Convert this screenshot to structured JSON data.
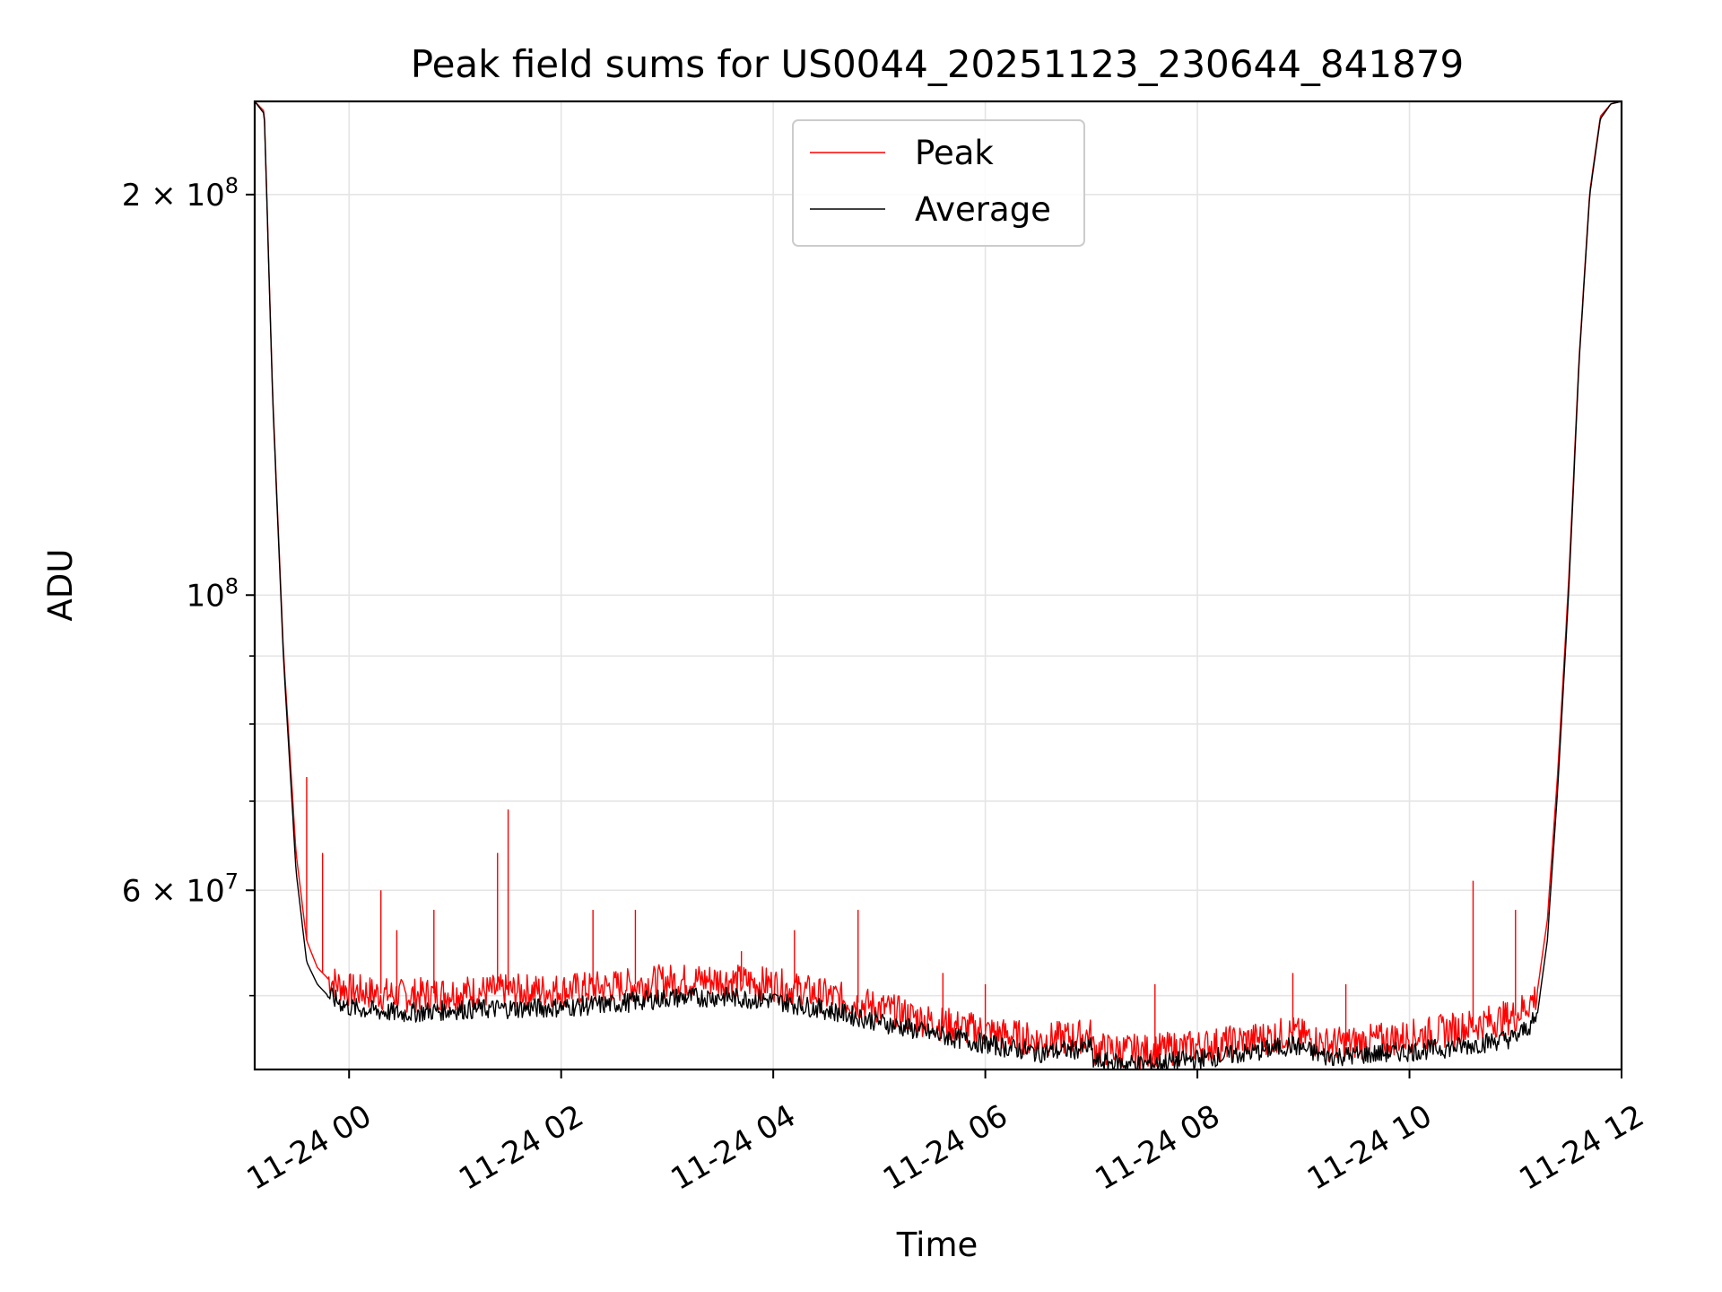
{
  "chart_data": {
    "type": "line",
    "title": "Peak field sums for US0044_20251123_230644_841879",
    "xlabel": "Time",
    "ylabel": "ADU",
    "yscale": "log",
    "xlim_hours": [
      -0.89,
      12.0
    ],
    "ylim": [
      44000000,
      235000000
    ],
    "x_ticks": [
      {
        "hours": 0,
        "label": "11-24 00"
      },
      {
        "hours": 2,
        "label": "11-24 02"
      },
      {
        "hours": 4,
        "label": "11-24 04"
      },
      {
        "hours": 6,
        "label": "11-24 06"
      },
      {
        "hours": 8,
        "label": "11-24 08"
      },
      {
        "hours": 10,
        "label": "11-24 10"
      },
      {
        "hours": 12,
        "label": "11-24 12"
      }
    ],
    "y_major_ticks": [
      {
        "value": 200000000,
        "mantissa": "2",
        "exponent": "8"
      },
      {
        "value": 100000000,
        "mantissa": "",
        "exponent": "8"
      },
      {
        "value": 60000000,
        "mantissa": "6",
        "exponent": "7"
      }
    ],
    "y_minor_ticks": [
      50000000,
      70000000,
      80000000,
      90000000
    ],
    "legend": {
      "location": "upper center",
      "entries": [
        {
          "label": "Peak",
          "color": "#ff0000"
        },
        {
          "label": "Average",
          "color": "#000000"
        }
      ]
    },
    "series": [
      {
        "name": "Average",
        "color": "#000000",
        "x_hours": [
          -0.89,
          -0.8,
          -0.72,
          -0.62,
          -0.5,
          -0.4,
          -0.3,
          -0.2,
          -0.1,
          0.0,
          0.25,
          0.5,
          1.0,
          1.5,
          2.0,
          2.5,
          3.0,
          3.5,
          4.0,
          4.5,
          5.0,
          5.5,
          6.0,
          6.5,
          7.0,
          7.02,
          7.5,
          8.0,
          8.5,
          8.9,
          9.2,
          9.5,
          10.0,
          10.5,
          11.0,
          11.2,
          11.3,
          11.4,
          11.5,
          11.6,
          11.7,
          11.8,
          11.9,
          12.0
        ],
        "values": [
          235000000,
          230000000,
          140000000,
          90000000,
          62000000,
          53000000,
          51000000,
          50000000,
          49500000,
          49000000,
          48700000,
          48500000,
          48800000,
          48900000,
          49000000,
          49300000,
          49800000,
          49900000,
          49600000,
          48800000,
          47800000,
          46800000,
          46000000,
          45300000,
          45700000,
          44600000,
          44400000,
          44800000,
          45300000,
          45900000,
          45000000,
          45100000,
          45400000,
          45800000,
          46500000,
          48000000,
          55000000,
          72000000,
          100000000,
          150000000,
          200000000,
          228000000,
          234000000,
          235000000
        ]
      },
      {
        "name": "Peak",
        "color": "#ff0000",
        "x_hours": [
          -0.89,
          -0.8,
          -0.72,
          -0.62,
          -0.5,
          -0.4,
          -0.3,
          -0.2,
          -0.1,
          0.0,
          0.25,
          0.5,
          1.0,
          1.5,
          2.0,
          2.5,
          3.0,
          3.5,
          4.0,
          4.5,
          5.0,
          5.5,
          6.0,
          6.5,
          7.0,
          7.02,
          7.5,
          8.0,
          8.5,
          8.9,
          9.2,
          9.5,
          10.0,
          10.5,
          11.0,
          11.2,
          11.3,
          11.4,
          11.5,
          11.6,
          11.7,
          11.8,
          11.9,
          12.0
        ],
        "values": [
          235000000,
          231000000,
          141000000,
          91000000,
          64000000,
          55000000,
          52500000,
          51500000,
          51000000,
          50500000,
          50200000,
          50000000,
          50300000,
          50400000,
          50500000,
          50800000,
          51300000,
          51400000,
          51000000,
          50000000,
          49000000,
          47800000,
          47000000,
          46300000,
          46700000,
          45600000,
          45400000,
          45800000,
          46300000,
          46900000,
          46000000,
          46100000,
          46600000,
          47300000,
          48300000,
          50000000,
          57000000,
          74000000,
          102000000,
          151000000,
          201000000,
          229000000,
          234000000,
          235000000
        ]
      }
    ],
    "spikes": [
      {
        "series": "Peak",
        "x_hours": -0.4,
        "value": 73000000
      },
      {
        "series": "Peak",
        "x_hours": -0.25,
        "value": 64000000
      },
      {
        "series": "Peak",
        "x_hours": 0.3,
        "value": 60000000
      },
      {
        "series": "Peak",
        "x_hours": 0.45,
        "value": 56000000
      },
      {
        "series": "Peak",
        "x_hours": 0.8,
        "value": 58000000
      },
      {
        "series": "Peak",
        "x_hours": 1.4,
        "value": 64000000
      },
      {
        "series": "Peak",
        "x_hours": 1.5,
        "value": 69000000
      },
      {
        "series": "Peak",
        "x_hours": 2.3,
        "value": 58000000
      },
      {
        "series": "Peak",
        "x_hours": 2.7,
        "value": 58000000
      },
      {
        "series": "Peak",
        "x_hours": 3.7,
        "value": 54000000
      },
      {
        "series": "Peak",
        "x_hours": 4.2,
        "value": 56000000
      },
      {
        "series": "Peak",
        "x_hours": 4.8,
        "value": 58000000
      },
      {
        "series": "Peak",
        "x_hours": 5.6,
        "value": 52000000
      },
      {
        "series": "Peak",
        "x_hours": 6.0,
        "value": 51000000
      },
      {
        "series": "Peak",
        "x_hours": 7.6,
        "value": 51000000
      },
      {
        "series": "Peak",
        "x_hours": 8.9,
        "value": 52000000
      },
      {
        "series": "Peak",
        "x_hours": 9.4,
        "value": 51000000
      },
      {
        "series": "Peak",
        "x_hours": 10.6,
        "value": 61000000
      },
      {
        "series": "Peak",
        "x_hours": 11.0,
        "value": 58000000
      }
    ]
  }
}
